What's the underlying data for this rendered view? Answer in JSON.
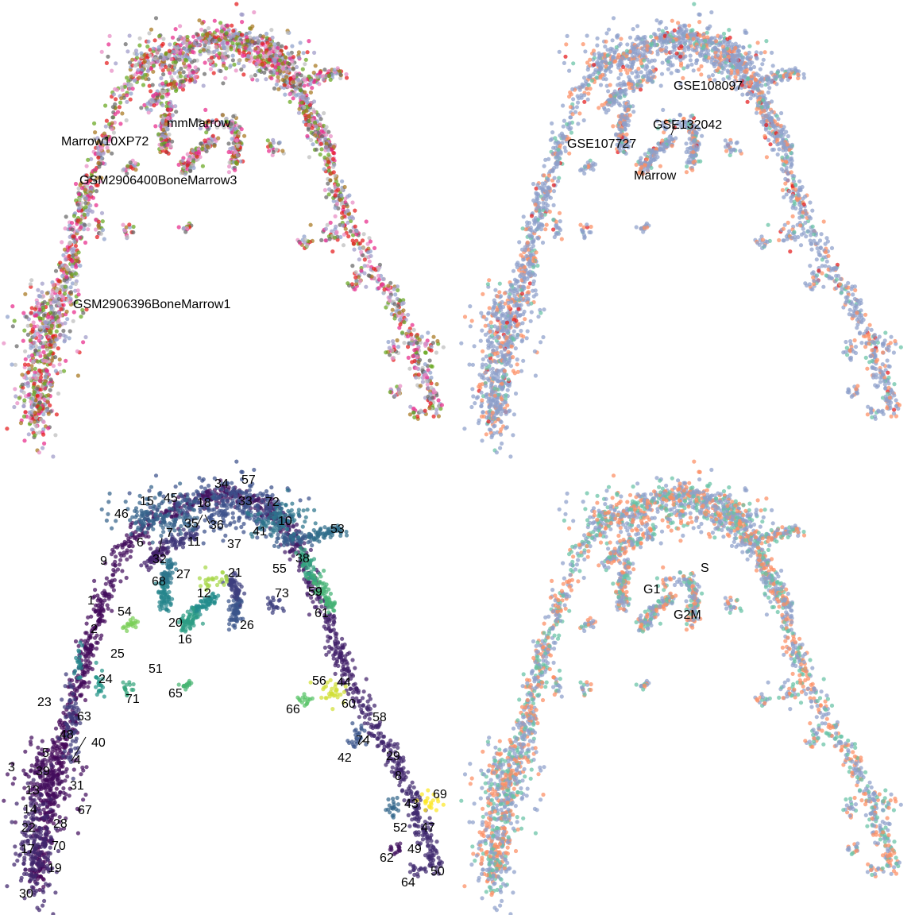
{
  "chart_data": [
    {
      "type": "scatter",
      "title": "",
      "xlabel": "",
      "ylabel": "",
      "grid": false,
      "legend": "none",
      "axes_visible": false,
      "color_by": "sample",
      "labels": [
        {
          "text": "mmMarrow"
        },
        {
          "text": "Marrow10XP72"
        },
        {
          "text": "GSM2906400BoneMarrow3"
        },
        {
          "text": "GSM2906396BoneMarrow1"
        }
      ],
      "palette": [
        "#e78ac3",
        "#bdbdbd",
        "#e7298a",
        "#8da0cb",
        "#666666",
        "#9e9ac8",
        "#66a61e",
        "#e41a1c",
        "#a6761d"
      ]
    },
    {
      "type": "scatter",
      "title": "",
      "xlabel": "",
      "ylabel": "",
      "grid": false,
      "legend": "none",
      "axes_visible": false,
      "color_by": "dataset",
      "labels": [
        {
          "text": "GSE108097",
          "color": "#fc8d62"
        },
        {
          "text": "GSE132042",
          "color": "#66c2a5"
        },
        {
          "text": "GSE107727",
          "color": "#8da0cb"
        },
        {
          "text": "Marrow",
          "color": "#e41a1c"
        }
      ],
      "palette": [
        "#8da0cb",
        "#fc8d62",
        "#66c2a5",
        "#e41a1c"
      ]
    },
    {
      "type": "scatter",
      "title": "",
      "xlabel": "",
      "ylabel": "",
      "grid": false,
      "legend": "none",
      "axes_visible": false,
      "color_by": "cluster",
      "colormap": "viridis",
      "labels": [
        {
          "text": "57"
        },
        {
          "text": "34"
        },
        {
          "text": "33"
        },
        {
          "text": "72"
        },
        {
          "text": "15"
        },
        {
          "text": "45"
        },
        {
          "text": "18"
        },
        {
          "text": "46"
        },
        {
          "text": "35"
        },
        {
          "text": "36"
        },
        {
          "text": "10"
        },
        {
          "text": "11"
        },
        {
          "text": "41"
        },
        {
          "text": "53"
        },
        {
          "text": "37"
        },
        {
          "text": "6"
        },
        {
          "text": "7"
        },
        {
          "text": "9"
        },
        {
          "text": "32"
        },
        {
          "text": "38"
        },
        {
          "text": "55"
        },
        {
          "text": "27"
        },
        {
          "text": "21"
        },
        {
          "text": "68"
        },
        {
          "text": "59"
        },
        {
          "text": "12"
        },
        {
          "text": "73"
        },
        {
          "text": "1"
        },
        {
          "text": "54"
        },
        {
          "text": "61"
        },
        {
          "text": "20"
        },
        {
          "text": "26"
        },
        {
          "text": "2"
        },
        {
          "text": "16"
        },
        {
          "text": "25"
        },
        {
          "text": "51"
        },
        {
          "text": "24"
        },
        {
          "text": "56"
        },
        {
          "text": "44"
        },
        {
          "text": "71"
        },
        {
          "text": "65"
        },
        {
          "text": "60"
        },
        {
          "text": "23"
        },
        {
          "text": "66"
        },
        {
          "text": "63"
        },
        {
          "text": "58"
        },
        {
          "text": "48"
        },
        {
          "text": "40"
        },
        {
          "text": "74"
        },
        {
          "text": "5"
        },
        {
          "text": "29"
        },
        {
          "text": "42"
        },
        {
          "text": "4"
        },
        {
          "text": "3"
        },
        {
          "text": "39"
        },
        {
          "text": "8"
        },
        {
          "text": "31"
        },
        {
          "text": "13"
        },
        {
          "text": "69"
        },
        {
          "text": "43"
        },
        {
          "text": "67"
        },
        {
          "text": "14"
        },
        {
          "text": "28"
        },
        {
          "text": "52"
        },
        {
          "text": "47"
        },
        {
          "text": "22"
        },
        {
          "text": "70"
        },
        {
          "text": "49"
        },
        {
          "text": "17"
        },
        {
          "text": "62"
        },
        {
          "text": "19"
        },
        {
          "text": "50"
        },
        {
          "text": "64"
        },
        {
          "text": "30"
        }
      ]
    },
    {
      "type": "scatter",
      "title": "",
      "xlabel": "",
      "ylabel": "",
      "grid": false,
      "legend": "none",
      "axes_visible": false,
      "color_by": "cell_cycle_phase",
      "labels": [
        {
          "text": "S",
          "color": "#fc8d62"
        },
        {
          "text": "G1",
          "color": "#8da0cb"
        },
        {
          "text": "G2M",
          "color": "#66c2a5"
        }
      ],
      "palette": [
        "#8da0cb",
        "#fc8d62",
        "#66c2a5"
      ]
    }
  ]
}
